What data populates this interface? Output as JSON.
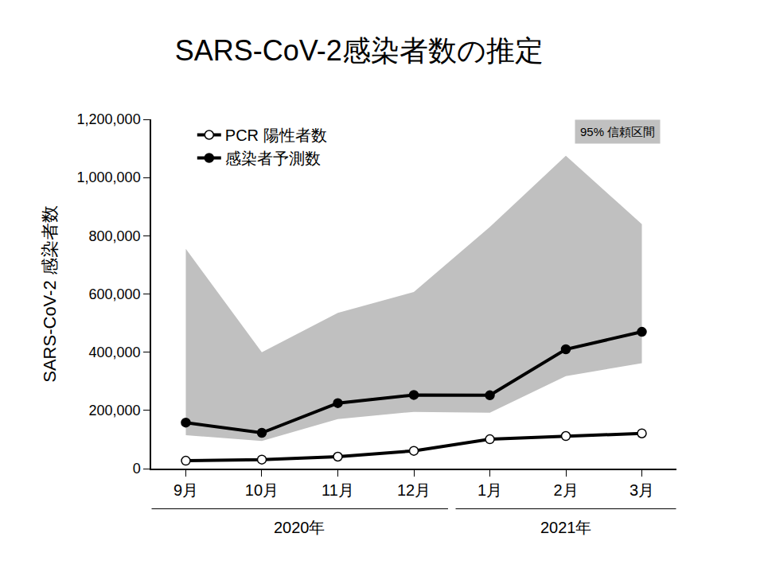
{
  "chart_data": {
    "type": "line",
    "title": "SARS-CoV-2感染者数の推定",
    "y_label": "SARS-CoV-2 感染者数",
    "categories": [
      "9月",
      "10月",
      "11月",
      "12月",
      "1月",
      "2月",
      "3月"
    ],
    "category_groups": [
      {
        "label": "2020年",
        "categories": [
          "9月",
          "10月",
          "11月",
          "12月"
        ]
      },
      {
        "label": "2021年",
        "categories": [
          "1月",
          "2月",
          "3月"
        ]
      }
    ],
    "series": [
      {
        "name": "感染者予測数",
        "color": "#000000",
        "marker": "filled-circle",
        "values": [
          158000,
          123000,
          225000,
          253000,
          252000,
          410000,
          470000
        ]
      },
      {
        "name": "PCR 陽性者数",
        "color": "#000000",
        "marker": "hollow-circle",
        "values": [
          27000,
          31000,
          41000,
          61000,
          101000,
          112000,
          121000
        ]
      }
    ],
    "band": {
      "name": "95% 信頼区間",
      "color": "#c0c0c0",
      "lower": [
        115000,
        95000,
        170000,
        195000,
        192000,
        318000,
        362000
      ],
      "upper": [
        755000,
        400000,
        535000,
        607000,
        830000,
        1075000,
        840000
      ]
    },
    "ylim": [
      0,
      1200000
    ],
    "yticks": [
      0,
      {
        "value": 200000,
        "label": "200,000"
      },
      {
        "value": 400000,
        "label": "400,000"
      },
      {
        "value": 600000,
        "label": "600,000"
      },
      {
        "value": 800000,
        "label": "800,000"
      },
      {
        "value": 1000000,
        "label": "1,000,000"
      },
      {
        "value": 1200000,
        "label": "1,200,000"
      }
    ],
    "grid": false,
    "legend": "upper left"
  }
}
